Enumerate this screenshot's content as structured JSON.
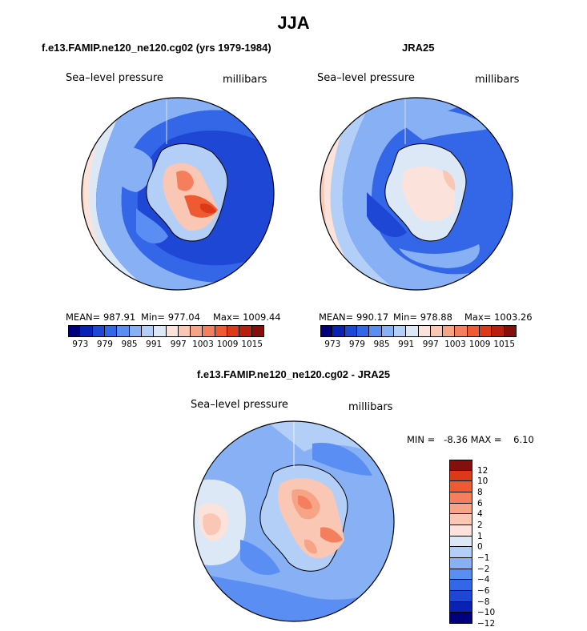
{
  "figure": {
    "title": "JJA"
  },
  "palette": {
    "slp": [
      "#00007f",
      "#0a22b3",
      "#1f47d6",
      "#3466e8",
      "#5a8ef2",
      "#87b0f5",
      "#b4cff7",
      "#dde8f7",
      "#fbe3dc",
      "#f9c7b3",
      "#f7a486",
      "#f57f5c",
      "#ef5a33",
      "#db3918",
      "#b81f0d",
      "#850f0a"
    ],
    "diff": [
      "#00007f",
      "#0a22b3",
      "#1f47d6",
      "#3466e8",
      "#5a8ef2",
      "#87b0f5",
      "#b4cff7",
      "#dde8f7",
      "#fbe3dc",
      "#f9c7b3",
      "#f7a486",
      "#f57f5c",
      "#ef5a33",
      "#db3918",
      "#850f0a"
    ]
  },
  "panels": [
    {
      "id": "model",
      "title": "f.e13.FAMIP.ne120_ne120.cg02 (yrs 1979-1984)",
      "left_label": "Sea–level pressure",
      "right_label": "millibars",
      "mean": "MEAN= 987.91",
      "min": "Min= 977.04",
      "max": "Max= 1009.44",
      "ticks": [
        "973",
        "979",
        "985",
        "991",
        "997",
        "1003",
        "1009",
        "1015"
      ]
    },
    {
      "id": "obs",
      "title": "JRA25",
      "left_label": "Sea–level pressure",
      "right_label": "millibars",
      "mean": "MEAN= 990.17",
      "min": "Min= 978.88",
      "max": "Max= 1003.26",
      "ticks": [
        "973",
        "979",
        "985",
        "991",
        "997",
        "1003",
        "1009",
        "1015"
      ]
    },
    {
      "id": "diff",
      "title": "f.e13.FAMIP.ne120_ne120.cg02 - JRA25",
      "left_label": "Sea–level pressure",
      "right_label": "millibars",
      "minmax": "MIN =   -8.36 MAX =    6.10",
      "ticks": [
        "12",
        "10",
        "8",
        "6",
        "4",
        "2",
        "1",
        "0",
        "−1",
        "−2",
        "−4",
        "−6",
        "−8",
        "−10",
        "−12"
      ]
    }
  ]
}
